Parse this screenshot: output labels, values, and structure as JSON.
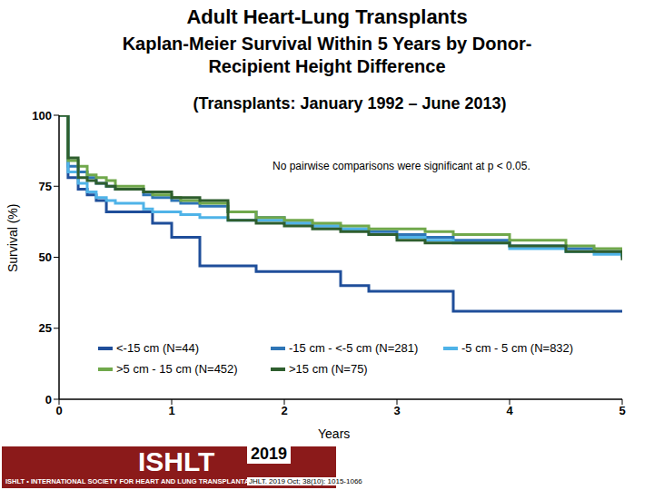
{
  "chart_data": {
    "type": "line",
    "title": "Adult Heart-Lung Transplants",
    "subtitle": "Kaplan-Meier Survival Within 5 Years by Donor-Recipient Height Difference",
    "subtitle2": "(Transplants: January 1992 – June 2013)",
    "annotation": "No pairwise comparisons were significant at p < 0.05.",
    "x_label": "Years",
    "y_label": "Survival (%)",
    "x": [
      0,
      0.08,
      0.17,
      0.25,
      0.33,
      0.42,
      0.5,
      0.75,
      0.83,
      1,
      1.08,
      1.25,
      1.5,
      1.75,
      2,
      2.25,
      2.5,
      2.75,
      3,
      3.25,
      3.5,
      4,
      4.5,
      4.75,
      5
    ],
    "series": [
      {
        "name": "<-15 cm (N=44)",
        "color": "#1f4e9a",
        "values": [
          100,
          78,
          74,
          72,
          70,
          66,
          66,
          66,
          62,
          57,
          57,
          47,
          47,
          45,
          45,
          45,
          40,
          38,
          38,
          38,
          31,
          31,
          31,
          31,
          31
        ]
      },
      {
        "name": "-15 cm - <-5 cm (N=281)",
        "color": "#2e75b6",
        "values": [
          100,
          82,
          80,
          78,
          76,
          75,
          74,
          72,
          71,
          70,
          69,
          68,
          66,
          64,
          62,
          61,
          60,
          59,
          58,
          57,
          56,
          54,
          53,
          52,
          50
        ]
      },
      {
        "name": "-5 cm - 5 cm (N=832)",
        "color": "#4fb3e8",
        "values": [
          100,
          80,
          76,
          73,
          71,
          70,
          69,
          67,
          66,
          66,
          65,
          64,
          63,
          63,
          62,
          61,
          60,
          58,
          57,
          56,
          55,
          53,
          52,
          51,
          50
        ]
      },
      {
        "name": ">5 cm - 15 cm (N=452)",
        "color": "#70a84b",
        "values": [
          100,
          84,
          82,
          79,
          78,
          77,
          75,
          73,
          72,
          71,
          70,
          69,
          66,
          64,
          63,
          62,
          61,
          60,
          60,
          59,
          58,
          56,
          54,
          53,
          51
        ]
      },
      {
        "name": ">15 cm (N=75)",
        "color": "#2e5e2e",
        "values": [
          100,
          85,
          78,
          77,
          76,
          75,
          74,
          73,
          73,
          71,
          71,
          70,
          63,
          62,
          61,
          60,
          59,
          58,
          56,
          55,
          55,
          54,
          52,
          52,
          49
        ]
      }
    ],
    "xlim": [
      0,
      5
    ],
    "xticks": [
      0,
      1,
      2,
      3,
      4,
      5
    ],
    "ylim": [
      0,
      100
    ],
    "yticks": [
      0,
      25,
      50,
      75,
      100
    ],
    "grid": false,
    "legend": "bottom",
    "line_style": "step",
    "marker": "none",
    "logo_text": "ISHLT",
    "logo_subtitle": "ISHLT • INTERNATIONAL SOCIETY FOR HEART AND LUNG TRANSPLANTATION",
    "year": "2019",
    "citation": "JHLT. 2019 Oct; 38(10): 1015-1066"
  }
}
